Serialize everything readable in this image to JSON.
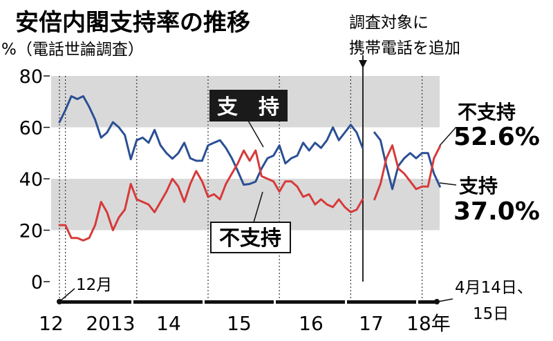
{
  "title": "安倍内閣支持率の推移",
  "subtitle": "%（電話世論調査）",
  "y_unit": "%",
  "annotation_phone": [
    "調査対象に",
    "携帯電話を追加"
  ],
  "annotation_start": "12月",
  "annotation_end": [
    "4月14日、",
    "15日"
  ],
  "callouts": {
    "support": "支　持",
    "nonsupport": "不支持"
  },
  "end_labels": {
    "nonsupport_label": "不支持",
    "nonsupport_value": "52.6%",
    "support_label": "支持",
    "support_value": "37.0%"
  },
  "colors": {
    "support": "#2a4f94",
    "nonsupport": "#d63a3a",
    "band": "#d9d9d9"
  },
  "chart_data": {
    "type": "line",
    "title": "安倍内閣支持率の推移",
    "ylabel": "%",
    "ylim": [
      0,
      80
    ],
    "y_ticks": [
      0,
      20,
      40,
      60,
      80
    ],
    "x_ticks": [
      "12",
      "2013",
      "14",
      "15",
      "16",
      "17",
      "18年"
    ],
    "x_range": [
      "2012-12",
      "2018-04"
    ],
    "grid": false,
    "series": [
      {
        "name": "支持",
        "values": [
          [
            "2012-12",
            62.0
          ],
          [
            "2013-01",
            66.7
          ],
          [
            "2013-02",
            72.1
          ],
          [
            "2013-03",
            71.0
          ],
          [
            "2013-04",
            72.1
          ],
          [
            "2013-05",
            68.0
          ],
          [
            "2013-06",
            63.0
          ],
          [
            "2013-07",
            56.0
          ],
          [
            "2013-08",
            58.0
          ],
          [
            "2013-09",
            62.0
          ],
          [
            "2013-10",
            60.0
          ],
          [
            "2013-11",
            57.0
          ],
          [
            "2013-12",
            47.6
          ],
          [
            "2014-01",
            55.0
          ],
          [
            "2014-02",
            56.0
          ],
          [
            "2014-03",
            54.0
          ],
          [
            "2014-04",
            59.0
          ],
          [
            "2014-05",
            53.0
          ],
          [
            "2014-06",
            50.0
          ],
          [
            "2014-07",
            47.8
          ],
          [
            "2014-08",
            50.0
          ],
          [
            "2014-09",
            54.0
          ],
          [
            "2014-10",
            48.0
          ],
          [
            "2014-11",
            47.0
          ],
          [
            "2014-12",
            47.0
          ],
          [
            "2015-01",
            53.0
          ],
          [
            "2015-02",
            54.0
          ],
          [
            "2015-03",
            55.0
          ],
          [
            "2015-04",
            52.0
          ],
          [
            "2015-05",
            48.0
          ],
          [
            "2015-06",
            43.0
          ],
          [
            "2015-07",
            37.7
          ],
          [
            "2015-08",
            38.0
          ],
          [
            "2015-09",
            38.9
          ],
          [
            "2015-10",
            44.0
          ],
          [
            "2015-11",
            48.0
          ],
          [
            "2015-12",
            49.0
          ],
          [
            "2016-01",
            53.0
          ],
          [
            "2016-02",
            46.0
          ],
          [
            "2016-03",
            48.0
          ],
          [
            "2016-04",
            49.0
          ],
          [
            "2016-05",
            54.0
          ],
          [
            "2016-06",
            51.0
          ],
          [
            "2016-07",
            54.0
          ],
          [
            "2016-08",
            52.0
          ],
          [
            "2016-09",
            55.0
          ],
          [
            "2016-10",
            60.0
          ],
          [
            "2016-11",
            55.0
          ],
          [
            "2016-12",
            58.0
          ],
          [
            "2017-01",
            61.0
          ],
          [
            "2017-02",
            58.0
          ],
          [
            "2017-03",
            52.0
          ],
          null,
          [
            "2017-05",
            58.0
          ],
          [
            "2017-06",
            55.0
          ],
          [
            "2017-07",
            45.0
          ],
          [
            "2017-08",
            36.0
          ],
          [
            "2017-09",
            45.0
          ],
          [
            "2017-10",
            48.0
          ],
          [
            "2017-11",
            50.0
          ],
          [
            "2017-12",
            48.0
          ],
          [
            "2018-01",
            50.0
          ],
          [
            "2018-02",
            50.0
          ],
          [
            "2018-03",
            42.0
          ],
          [
            "2018-04",
            37.0
          ]
        ]
      },
      {
        "name": "不支持",
        "values": [
          [
            "2012-12",
            22.0
          ],
          [
            "2013-01",
            22.0
          ],
          [
            "2013-02",
            17.0
          ],
          [
            "2013-03",
            17.0
          ],
          [
            "2013-04",
            16.0
          ],
          [
            "2013-05",
            17.0
          ],
          [
            "2013-06",
            22.0
          ],
          [
            "2013-07",
            31.0
          ],
          [
            "2013-08",
            27.0
          ],
          [
            "2013-09",
            20.0
          ],
          [
            "2013-10",
            25.0
          ],
          [
            "2013-11",
            28.0
          ],
          [
            "2013-12",
            38.0
          ],
          [
            "2014-01",
            32.0
          ],
          [
            "2014-02",
            31.0
          ],
          [
            "2014-03",
            30.0
          ],
          [
            "2014-04",
            27.0
          ],
          [
            "2014-05",
            31.0
          ],
          [
            "2014-06",
            35.0
          ],
          [
            "2014-07",
            40.0
          ],
          [
            "2014-08",
            37.0
          ],
          [
            "2014-09",
            31.0
          ],
          [
            "2014-10",
            38.0
          ],
          [
            "2014-11",
            43.0
          ],
          [
            "2014-12",
            39.0
          ],
          [
            "2015-01",
            33.0
          ],
          [
            "2015-02",
            34.0
          ],
          [
            "2015-03",
            32.0
          ],
          [
            "2015-04",
            38.0
          ],
          [
            "2015-05",
            42.0
          ],
          [
            "2015-06",
            46.0
          ],
          [
            "2015-07",
            51.0
          ],
          [
            "2015-08",
            47.0
          ],
          [
            "2015-09",
            51.0
          ],
          [
            "2015-10",
            41.0
          ],
          [
            "2015-11",
            40.0
          ],
          [
            "2015-12",
            39.0
          ],
          [
            "2016-01",
            35.0
          ],
          [
            "2016-02",
            39.0
          ],
          [
            "2016-03",
            39.0
          ],
          [
            "2016-04",
            37.0
          ],
          [
            "2016-05",
            33.0
          ],
          [
            "2016-06",
            34.0
          ],
          [
            "2016-07",
            30.0
          ],
          [
            "2016-08",
            32.0
          ],
          [
            "2016-09",
            30.0
          ],
          [
            "2016-10",
            29.0
          ],
          [
            "2016-11",
            32.0
          ],
          [
            "2016-12",
            29.0
          ],
          [
            "2017-01",
            27.0
          ],
          [
            "2017-02",
            28.0
          ],
          [
            "2017-03",
            32.0
          ],
          null,
          [
            "2017-05",
            32.0
          ],
          [
            "2017-06",
            38.0
          ],
          [
            "2017-07",
            48.0
          ],
          [
            "2017-08",
            53.0
          ],
          [
            "2017-09",
            44.0
          ],
          [
            "2017-10",
            42.0
          ],
          [
            "2017-11",
            39.0
          ],
          [
            "2017-12",
            36.0
          ],
          [
            "2018-01",
            37.0
          ],
          [
            "2018-02",
            37.0
          ],
          [
            "2018-03",
            48.0
          ],
          [
            "2018-04",
            52.6
          ]
        ]
      }
    ]
  }
}
